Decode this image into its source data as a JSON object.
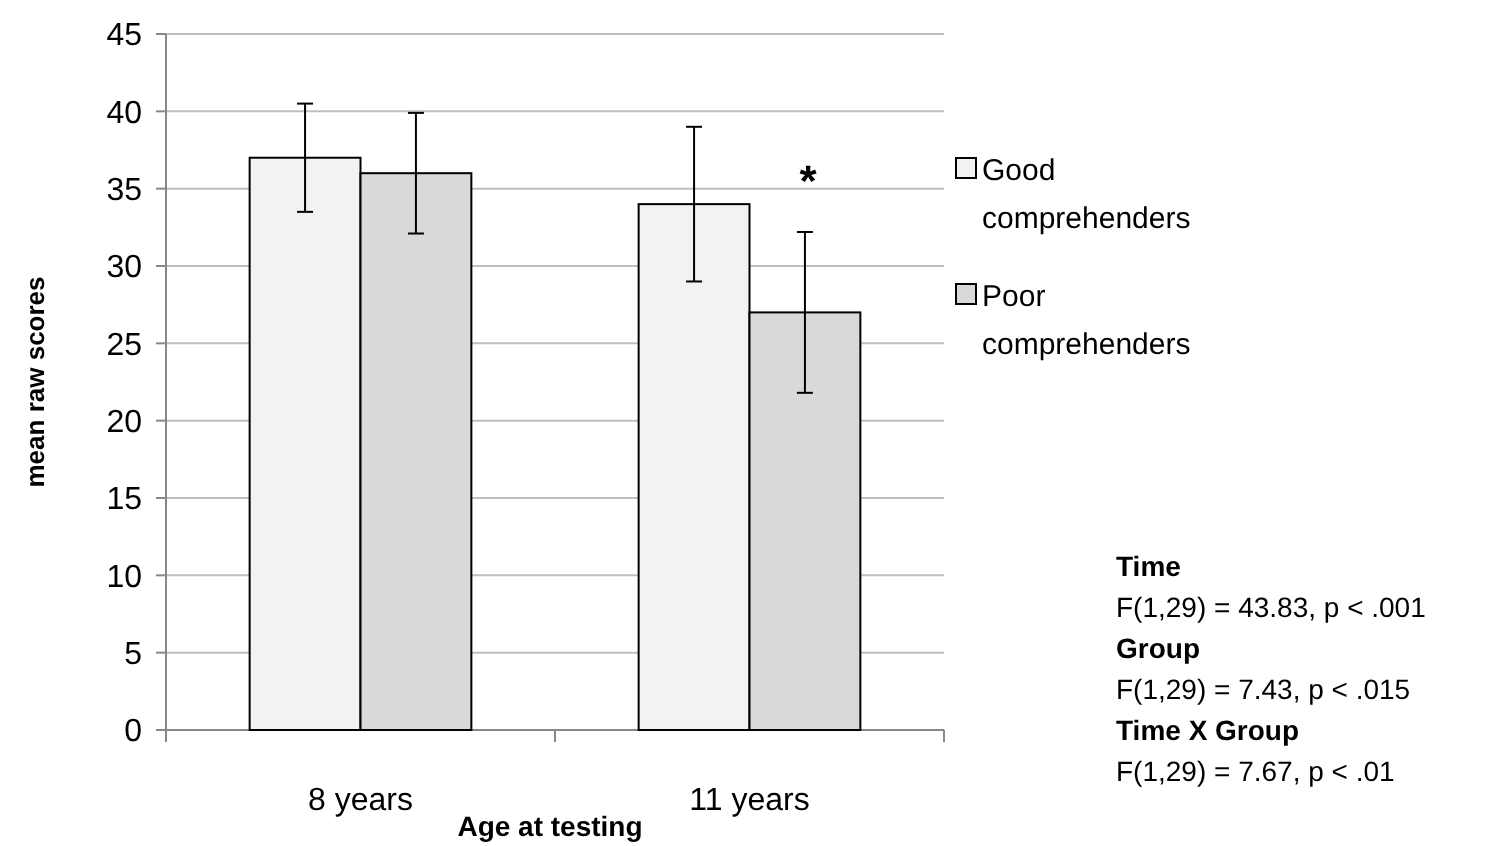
{
  "chart_data": {
    "type": "bar",
    "xlabel": "Age at testing",
    "ylabel": "mean raw scores",
    "categories": [
      "8 years",
      "11 years"
    ],
    "series": [
      {
        "name": "Good comprehenders",
        "color": "#f2f2f2",
        "values": [
          37,
          34
        ],
        "errors": [
          3.5,
          5
        ]
      },
      {
        "name": "Poor comprehenders",
        "color": "#d9d9d9",
        "values": [
          36,
          27
        ],
        "errors": [
          3.9,
          5.2
        ]
      }
    ],
    "ylim": [
      0,
      45
    ],
    "yticks": [
      0,
      5,
      10,
      15,
      20,
      25,
      30,
      35,
      40,
      45
    ],
    "grid": "y",
    "legend": "right",
    "annotations": [
      "*",
      "Time",
      "F(1,29) = 43.83, p < .001",
      "Group",
      "F(1,29)  = 7.43, p < .015",
      "Time X Group",
      "F(1,29)  = 7.67, p < .01"
    ]
  }
}
